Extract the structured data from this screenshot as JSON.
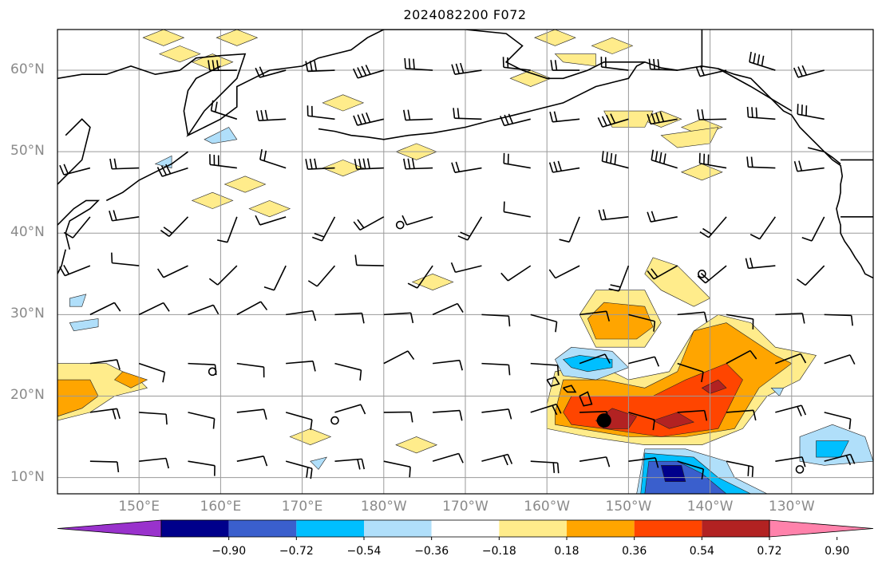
{
  "title": "2024082200 F072",
  "map": {
    "lat_labels": [
      "60°N",
      "50°N",
      "40°N",
      "30°N",
      "20°N",
      "10°N"
    ],
    "lon_labels": [
      "150°E",
      "160°E",
      "170°E",
      "180°W",
      "170°W",
      "160°W",
      "150°W",
      "140°W",
      "130°W"
    ],
    "extent": {
      "lon_west": 140,
      "lon_east": 240,
      "lat_south": 8,
      "lat_north": 65
    },
    "field_colors": {
      "pos_018": "#ffec8b",
      "pos_036": "#ffa500",
      "pos_054": "#ff4500",
      "pos_072": "#b22222",
      "neg_018": "#b0dffa",
      "neg_036": "#00bfff",
      "neg_054": "#3a5fcd",
      "neg_072": "#00008b"
    },
    "markers": [
      {
        "type": "storm-center",
        "lon": 207,
        "lat": 17
      },
      {
        "type": "calm-circle",
        "lon": 159,
        "lat": 23
      },
      {
        "type": "calm-circle",
        "lon": 182,
        "lat": 41
      },
      {
        "type": "calm-circle",
        "lon": 174,
        "lat": 17
      },
      {
        "type": "calm-circle",
        "lon": 219,
        "lat": 35
      },
      {
        "type": "calm-circle",
        "lon": 231,
        "lat": 11
      }
    ]
  },
  "colorbar": {
    "colors": [
      "#9932cc",
      "#00008b",
      "#3a5fcd",
      "#00bfff",
      "#b0dffa",
      "#ffffff",
      "#ffec8b",
      "#ffa500",
      "#ff4500",
      "#b22222",
      "#ff82ab"
    ],
    "tick_labels": [
      "−0.90",
      "−0.72",
      "−0.54",
      "−0.36",
      "−0.18",
      "0.18",
      "0.36",
      "0.54",
      "0.72",
      "0.90"
    ]
  }
}
